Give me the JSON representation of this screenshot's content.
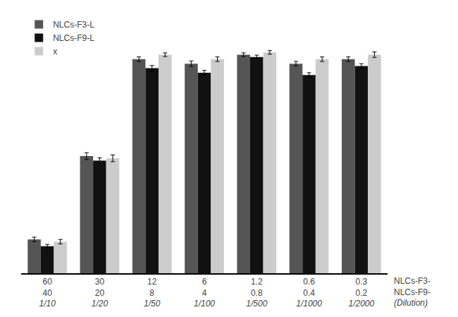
{
  "chart_data": {
    "type": "bar",
    "categories": [
      "60\n40\n1/10",
      "30\n20\n1/20",
      "12\n8\n1/50",
      "6\n4\n1/100",
      "1.2\n0.8\n1/500",
      "0.6\n0.4\n1/1000",
      "0.3\n0.2\n1/2000"
    ],
    "annotations": [
      "NLCs-F3-",
      "NLCs-F9-",
      "(Dilution)"
    ],
    "series": [
      {
        "name": "NLCs-F3-L",
        "color": "#555555",
        "values": [
          15,
          52,
          95,
          93,
          97,
          93,
          95
        ],
        "errors": [
          1.0,
          1.5,
          1.0,
          1.2,
          0.8,
          1.0,
          1.0
        ]
      },
      {
        "name": "NLCs-F9-L",
        "color": "#111111",
        "values": [
          12,
          50,
          91,
          89,
          96,
          88,
          92
        ],
        "errors": [
          0.8,
          1.2,
          1.2,
          1.0,
          0.8,
          1.0,
          1.0
        ]
      },
      {
        "name": "x",
        "color": "#cccccc",
        "values": [
          14,
          51,
          97,
          95,
          98,
          95,
          97
        ],
        "errors": [
          1.0,
          1.5,
          0.8,
          1.0,
          0.8,
          1.0,
          1.2
        ]
      }
    ],
    "ylim": [
      0,
      115
    ],
    "grid": false,
    "legend": "upper left",
    "tick_labels": "x"
  }
}
